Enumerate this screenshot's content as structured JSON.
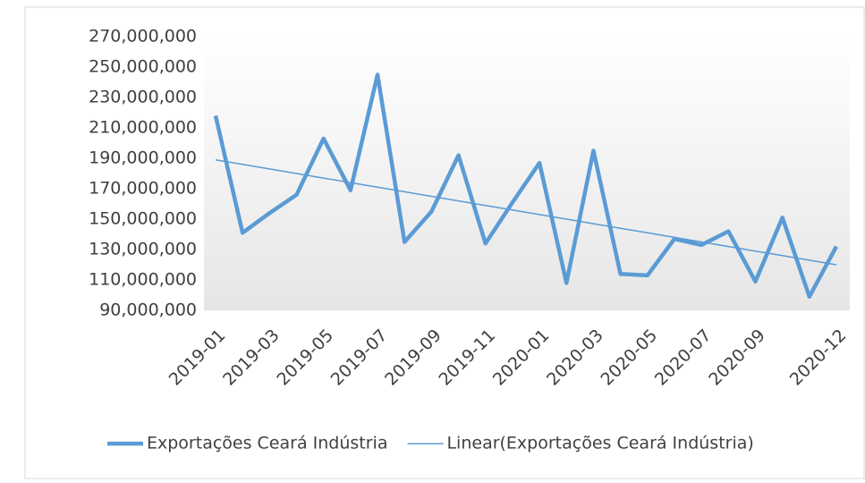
{
  "chart_data": {
    "type": "line",
    "categories": [
      "2019-01",
      null,
      "2019-03",
      null,
      "2019-05",
      null,
      "2019-07",
      null,
      "2019-09",
      null,
      "2019-11",
      null,
      "2020-01",
      null,
      "2020-03",
      null,
      "2020-05",
      null,
      "2020-07",
      null,
      "2020-09",
      null,
      null,
      "2020-12"
    ],
    "series": [
      {
        "name": "Exportações Ceará Indústria",
        "color": "#5b9bd5",
        "values": [
          218000000,
          141000000,
          154000000,
          166000000,
          203000000,
          169000000,
          245000000,
          135000000,
          155000000,
          192000000,
          134000000,
          161000000,
          187000000,
          108000000,
          195000000,
          114000000,
          113000000,
          137000000,
          133000000,
          142000000,
          109000000,
          151000000,
          99000000,
          132000000
        ]
      },
      {
        "name": "Linear(Exportações Ceará Indústria)",
        "color": "#5b9bd5",
        "values": [
          189000000,
          186000000,
          183000000,
          180000000,
          177000000,
          174000000,
          171000000,
          168000000,
          165000000,
          162000000,
          159000000,
          156000000,
          153000000,
          150000000,
          147000000,
          144000000,
          141000000,
          138000000,
          135000000,
          132000000,
          129000000,
          126000000,
          123000000,
          120000000
        ]
      }
    ],
    "ylim": [
      90000000,
      270000000
    ],
    "yticks": [
      {
        "value": 90000000,
        "label": "90,000,000"
      },
      {
        "value": 110000000,
        "label": "110,000,000"
      },
      {
        "value": 130000000,
        "label": "130,000,000"
      },
      {
        "value": 150000000,
        "label": "150,000,000"
      },
      {
        "value": 170000000,
        "label": "170,000,000"
      },
      {
        "value": 190000000,
        "label": "190,000,000"
      },
      {
        "value": 210000000,
        "label": "210,000,000"
      },
      {
        "value": 230000000,
        "label": "230,000,000"
      },
      {
        "value": 250000000,
        "label": "250,000,000"
      },
      {
        "value": 270000000,
        "label": "270,000,000"
      }
    ],
    "legend": "bottom"
  }
}
